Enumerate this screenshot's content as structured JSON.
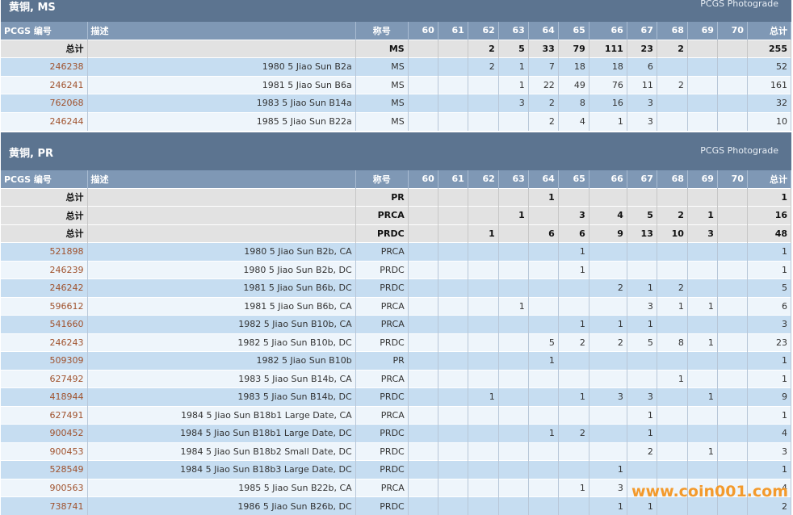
{
  "columns": {
    "pcgs": "PCGS 编号",
    "desc": "描述",
    "desig": "称号",
    "grades": [
      "60",
      "61",
      "62",
      "63",
      "64",
      "65",
      "66",
      "67",
      "68",
      "69",
      "70"
    ],
    "total": "总计"
  },
  "watermark": "www.coin001.com",
  "sections": [
    {
      "title": "黄铜, MS",
      "photograde": "PCGS Photograde",
      "rows": [
        {
          "type": "total",
          "pcgs": "总计",
          "desc": "",
          "desig": "MS",
          "grades": [
            "",
            "",
            "2",
            "5",
            "33",
            "79",
            "111",
            "23",
            "2",
            "",
            ""
          ],
          "total": "255"
        },
        {
          "type": "item",
          "pcgs": "246238",
          "desc": "1980 5 Jiao Sun B2a",
          "desig": "MS",
          "grades": [
            "",
            "",
            "2",
            "1",
            "7",
            "18",
            "18",
            "6",
            "",
            "",
            ""
          ],
          "total": "52"
        },
        {
          "type": "item",
          "pcgs": "246241",
          "desc": "1981 5 Jiao Sun B6a",
          "desig": "MS",
          "grades": [
            "",
            "",
            "",
            "1",
            "22",
            "49",
            "76",
            "11",
            "2",
            "",
            ""
          ],
          "total": "161"
        },
        {
          "type": "item",
          "pcgs": "762068",
          "desc": "1983 5 Jiao Sun B14a",
          "desig": "MS",
          "grades": [
            "",
            "",
            "",
            "3",
            "2",
            "8",
            "16",
            "3",
            "",
            "",
            ""
          ],
          "total": "32"
        },
        {
          "type": "item",
          "pcgs": "246244",
          "desc": "1985 5 Jiao Sun B22a",
          "desig": "MS",
          "grades": [
            "",
            "",
            "",
            "",
            "2",
            "4",
            "1",
            "3",
            "",
            "",
            ""
          ],
          "total": "10"
        }
      ]
    },
    {
      "title": "黄铜, PR",
      "photograde": "PCGS Photograde",
      "rows": [
        {
          "type": "total",
          "pcgs": "总计",
          "desc": "",
          "desig": "PR",
          "grades": [
            "",
            "",
            "",
            "",
            "1",
            "",
            "",
            "",
            "",
            "",
            ""
          ],
          "total": "1"
        },
        {
          "type": "total",
          "pcgs": "总计",
          "desc": "",
          "desig": "PRCA",
          "grades": [
            "",
            "",
            "",
            "1",
            "",
            "3",
            "4",
            "5",
            "2",
            "1",
            ""
          ],
          "total": "16"
        },
        {
          "type": "total",
          "pcgs": "总计",
          "desc": "",
          "desig": "PRDC",
          "grades": [
            "",
            "",
            "1",
            "",
            "6",
            "6",
            "9",
            "13",
            "10",
            "3",
            ""
          ],
          "total": "48"
        },
        {
          "type": "item",
          "pcgs": "521898",
          "desc": "1980 5 Jiao Sun B2b, CA",
          "desig": "PRCA",
          "grades": [
            "",
            "",
            "",
            "",
            "",
            "1",
            "",
            "",
            "",
            "",
            ""
          ],
          "total": "1"
        },
        {
          "type": "item",
          "pcgs": "246239",
          "desc": "1980 5 Jiao Sun B2b, DC",
          "desig": "PRDC",
          "grades": [
            "",
            "",
            "",
            "",
            "",
            "1",
            "",
            "",
            "",
            "",
            ""
          ],
          "total": "1"
        },
        {
          "type": "item",
          "pcgs": "246242",
          "desc": "1981 5 Jiao Sun B6b, DC",
          "desig": "PRDC",
          "grades": [
            "",
            "",
            "",
            "",
            "",
            "",
            "2",
            "1",
            "2",
            "",
            ""
          ],
          "total": "5"
        },
        {
          "type": "item",
          "pcgs": "596612",
          "desc": "1981 5 Jiao Sun B6b, CA",
          "desig": "PRCA",
          "grades": [
            "",
            "",
            "",
            "1",
            "",
            "",
            "",
            "3",
            "1",
            "1",
            ""
          ],
          "total": "6"
        },
        {
          "type": "item",
          "pcgs": "541660",
          "desc": "1982 5 Jiao Sun B10b, CA",
          "desig": "PRCA",
          "grades": [
            "",
            "",
            "",
            "",
            "",
            "1",
            "1",
            "1",
            "",
            "",
            ""
          ],
          "total": "3"
        },
        {
          "type": "item",
          "pcgs": "246243",
          "desc": "1982 5 Jiao Sun B10b, DC",
          "desig": "PRDC",
          "grades": [
            "",
            "",
            "",
            "",
            "5",
            "2",
            "2",
            "5",
            "8",
            "1",
            ""
          ],
          "total": "23"
        },
        {
          "type": "item",
          "pcgs": "509309",
          "desc": "1982 5 Jiao Sun B10b",
          "desig": "PR",
          "grades": [
            "",
            "",
            "",
            "",
            "1",
            "",
            "",
            "",
            "",
            "",
            ""
          ],
          "total": "1"
        },
        {
          "type": "item",
          "pcgs": "627492",
          "desc": "1983 5 Jiao Sun B14b, CA",
          "desig": "PRCA",
          "grades": [
            "",
            "",
            "",
            "",
            "",
            "",
            "",
            "",
            "1",
            "",
            ""
          ],
          "total": "1"
        },
        {
          "type": "item",
          "pcgs": "418944",
          "desc": "1983 5 Jiao Sun B14b, DC",
          "desig": "PRDC",
          "grades": [
            "",
            "",
            "1",
            "",
            "",
            "1",
            "3",
            "3",
            "",
            "1",
            ""
          ],
          "total": "9"
        },
        {
          "type": "item",
          "pcgs": "627491",
          "desc": "1984 5 Jiao Sun B18b1 Large Date, CA",
          "desig": "PRCA",
          "grades": [
            "",
            "",
            "",
            "",
            "",
            "",
            "",
            "1",
            "",
            "",
            ""
          ],
          "total": "1"
        },
        {
          "type": "item",
          "pcgs": "900452",
          "desc": "1984 5 Jiao Sun B18b1 Large Date, DC",
          "desig": "PRDC",
          "grades": [
            "",
            "",
            "",
            "",
            "1",
            "2",
            "",
            "1",
            "",
            "",
            ""
          ],
          "total": "4"
        },
        {
          "type": "item",
          "pcgs": "900453",
          "desc": "1984 5 Jiao Sun B18b2 Small Date, DC",
          "desig": "PRDC",
          "grades": [
            "",
            "",
            "",
            "",
            "",
            "",
            "",
            "2",
            "",
            "1",
            ""
          ],
          "total": "3"
        },
        {
          "type": "item",
          "pcgs": "528549",
          "desc": "1984 5 Jiao Sun B18b3 Large Date, DC",
          "desig": "PRDC",
          "grades": [
            "",
            "",
            "",
            "",
            "",
            "",
            "1",
            "",
            "",
            "",
            ""
          ],
          "total": "1"
        },
        {
          "type": "item",
          "pcgs": "900563",
          "desc": "1985 5 Jiao Sun B22b, CA",
          "desig": "PRCA",
          "grades": [
            "",
            "",
            "",
            "",
            "",
            "1",
            "3",
            "",
            "",
            "",
            ""
          ],
          "total": "4"
        },
        {
          "type": "item",
          "pcgs": "738741",
          "desc": "1986 5 Jiao Sun B26b, DC",
          "desig": "PRDC",
          "grades": [
            "",
            "",
            "",
            "",
            "",
            "",
            "1",
            "1",
            "",
            "",
            ""
          ],
          "total": "2"
        }
      ]
    }
  ]
}
